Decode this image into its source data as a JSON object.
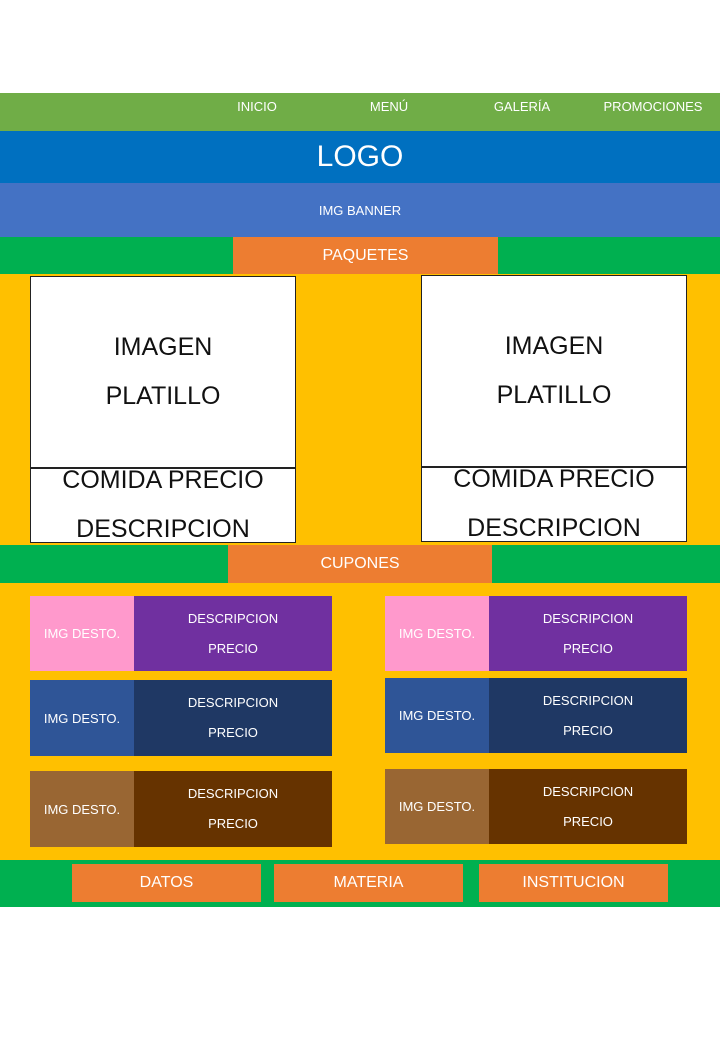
{
  "colors": {
    "nav": "#70ad47",
    "logo": "#0070c0",
    "banner": "#4472c4",
    "strip": "#00b050",
    "tab": "#ed7d31",
    "body": "#ffc000",
    "pink": "#ff99cc",
    "purple": "#7030a0",
    "blue_light": "#2f5597",
    "blue_dark": "#1f3864",
    "brown_light": "#996633",
    "brown_dark": "#663300"
  },
  "nav": {
    "items": [
      "INICIO",
      "MENÚ",
      "GALERÍA",
      "PROMOCIONES"
    ]
  },
  "logo": {
    "label": "LOGO"
  },
  "banner": {
    "label": "IMG BANNER"
  },
  "packages": {
    "tab_label": "PAQUETES",
    "cards": [
      {
        "img_line1": "IMAGEN",
        "img_line2": "PLATILLO",
        "info_line1": "COMIDA PRECIO",
        "info_line2": "DESCRIPCION"
      },
      {
        "img_line1": "IMAGEN",
        "img_line2": "PLATILLO",
        "info_line1": "COMIDA PRECIO",
        "info_line2": "DESCRIPCION"
      }
    ]
  },
  "coupons": {
    "tab_label": "CUPONES",
    "items": [
      {
        "img": "IMG DESTO.",
        "desc": "DESCRIPCION",
        "price": "PRECIO"
      },
      {
        "img": "IMG DESTO.",
        "desc": "DESCRIPCION",
        "price": "PRECIO"
      },
      {
        "img": "IMG DESTO.",
        "desc": "DESCRIPCION",
        "price": "PRECIO"
      },
      {
        "img": "IMG DESTO.",
        "desc": "DESCRIPCION",
        "price": "PRECIO"
      },
      {
        "img": "IMG DESTO.",
        "desc": "DESCRIPCION",
        "price": "PRECIO"
      },
      {
        "img": "IMG DESTO.",
        "desc": "DESCRIPCION",
        "price": "PRECIO"
      }
    ]
  },
  "footer": {
    "buttons": [
      "DATOS",
      "MATERIA",
      "INSTITUCION"
    ]
  }
}
